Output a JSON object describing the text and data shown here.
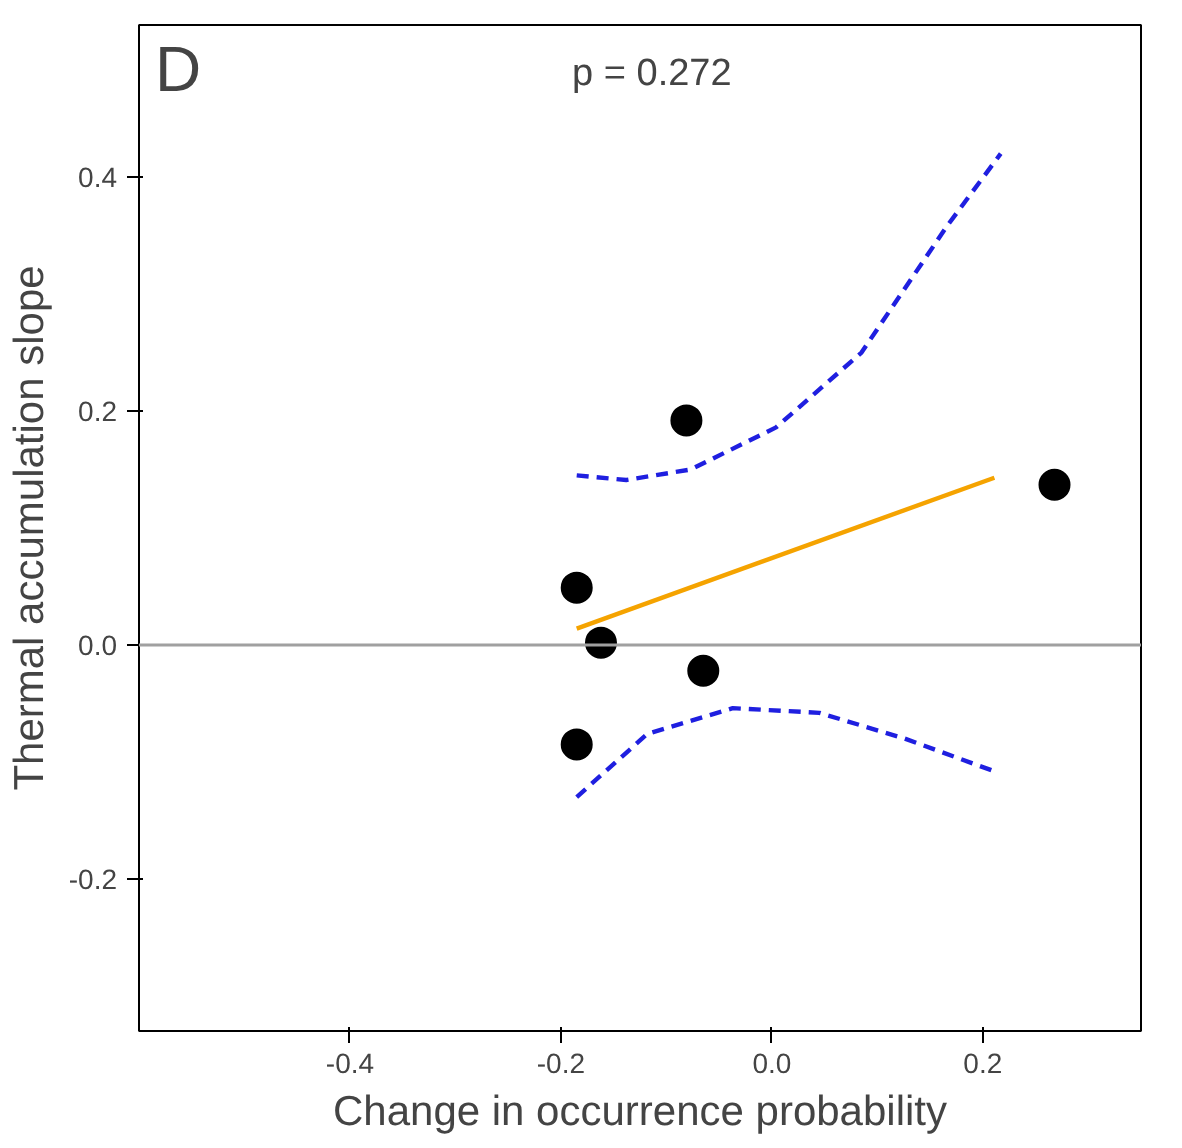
{
  "chart_data": {
    "type": "scatter",
    "xlabel": "Change in occurrence probability",
    "ylabel": "Thermal accumulation slope",
    "annotations": [
      "D",
      "p = 0.272"
    ],
    "xlim": [
      -0.6,
      0.35
    ],
    "ylim": [
      -0.33,
      0.53
    ],
    "xticks": [
      -0.4,
      -0.2,
      {
        "value": 0,
        "label": "0.0"
      },
      0.2
    ],
    "yticks": [
      -0.2,
      {
        "value": 0,
        "label": "0.0"
      },
      0.2,
      0.4
    ],
    "grid": false,
    "ref_lines": [
      {
        "axis": "y",
        "value": 0.0,
        "color": "#a0a0a0"
      }
    ],
    "series": [
      {
        "color": "#000000",
        "marker": "circle",
        "x": [
          0.268,
          -0.081,
          -0.185,
          -0.162,
          -0.065,
          -0.185
        ],
        "values": [
          0.137,
          0.192,
          0.049,
          0.002,
          -0.022,
          -0.085
        ]
      },
      {
        "type": "line",
        "color": "#f5a300",
        "line_style": "solid",
        "marker": "none",
        "x": [
          -0.185,
          0.211
        ],
        "values": [
          0.014,
          0.143
        ]
      },
      {
        "type": "line",
        "color": "#1f1fe0",
        "line_style": "dashed",
        "marker": "none",
        "x": [
          -0.185,
          -0.138,
          -0.077,
          0.004,
          0.085,
          0.166,
          0.217
        ],
        "values": [
          0.145,
          0.141,
          0.15,
          0.186,
          0.25,
          0.358,
          0.42
        ]
      },
      {
        "type": "line",
        "color": "#1f1fe0",
        "line_style": "dashed",
        "marker": "none",
        "x": [
          -0.185,
          -0.118,
          -0.037,
          0.045,
          0.126,
          0.211
        ],
        "values": [
          -0.13,
          -0.076,
          -0.054,
          -0.058,
          -0.08,
          -0.108
        ]
      }
    ]
  }
}
